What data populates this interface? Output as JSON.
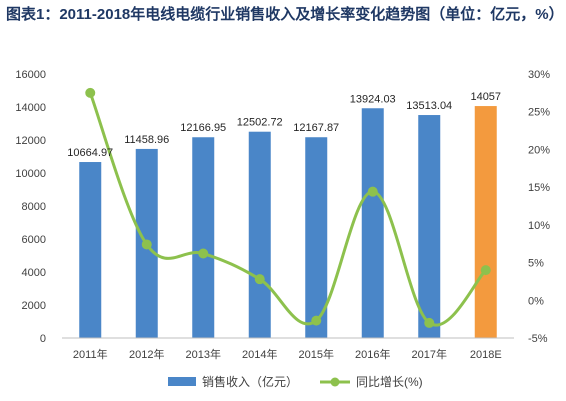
{
  "chart_data": {
    "type": "bar",
    "title": "图表1：2011-2018年电线电缆行业销售收入及增长率变化趋势图（单位：亿元，%）",
    "categories": [
      "2011年",
      "2012年",
      "2013年",
      "2014年",
      "2015年",
      "2016年",
      "2017年",
      "2018E"
    ],
    "series": [
      {
        "name": "销售收入（亿元）",
        "type": "bar",
        "axis": "left",
        "values": [
          10664.97,
          11458.96,
          12166.95,
          12502.72,
          12167.87,
          13924.03,
          13513.04,
          14057
        ],
        "labels": [
          "10664.97",
          "11458.96",
          "12166.95",
          "12502.72",
          "12167.87",
          "13924.03",
          "13513.04",
          "14057"
        ],
        "color": "#4a86c8",
        "highlight_color": "#f39a3e",
        "highlight_index": 7
      },
      {
        "name": "同比增长(%)",
        "type": "line",
        "axis": "right",
        "values": [
          27.5,
          7.4,
          6.2,
          2.8,
          -2.7,
          14.4,
          -3.0,
          4.0
        ],
        "color": "#8dc14d"
      }
    ],
    "y_left": {
      "min": 0,
      "max": 16000,
      "step": 2000,
      "ticks": [
        "0",
        "2000",
        "4000",
        "6000",
        "8000",
        "10000",
        "12000",
        "14000",
        "16000"
      ]
    },
    "y_right": {
      "min": -5,
      "max": 30,
      "step": 5,
      "ticks": [
        "-5%",
        "0%",
        "5%",
        "10%",
        "15%",
        "20%",
        "25%",
        "30%"
      ]
    },
    "legend_position": "bottom",
    "grid": false
  }
}
